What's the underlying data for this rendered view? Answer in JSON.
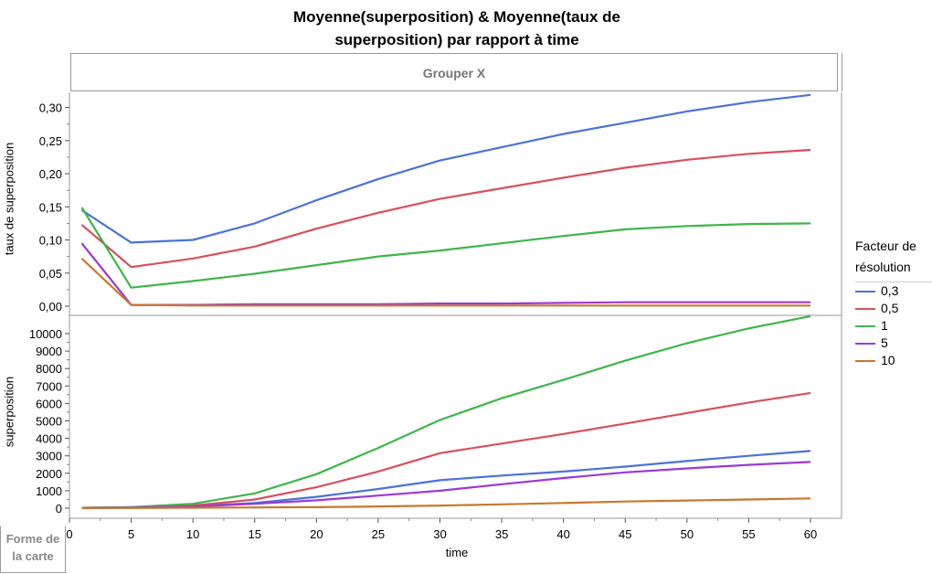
{
  "title": "Moyenne(superposition) & Moyenne(taux de superposition) par rapport à time",
  "title_lines": [
    "Moyenne(superposition) & Moyenne(taux de",
    "superposition) par rapport à time"
  ],
  "group_x_label": "Grouper X",
  "map_shape_label": [
    "Forme de",
    "la carte"
  ],
  "legend": {
    "title_lines": [
      "Facteur de",
      "résolution"
    ]
  },
  "chart_data": [
    {
      "type": "line",
      "ylabel": "taux de superposition",
      "xlabel": "time",
      "x": [
        1,
        5,
        10,
        15,
        20,
        25,
        30,
        35,
        40,
        45,
        50,
        55,
        60
      ],
      "xlim": [
        0,
        60
      ],
      "xticks": [
        0,
        5,
        10,
        15,
        20,
        25,
        30,
        35,
        40,
        45,
        50,
        55,
        60
      ],
      "ylim": [
        0,
        0.32
      ],
      "yticks": [
        0,
        0.05,
        0.1,
        0.15,
        0.2,
        0.25,
        0.3
      ],
      "yticklabels": [
        "0,00",
        "0,05",
        "0,10",
        "0,15",
        "0,20",
        "0,25",
        "0,30"
      ],
      "grid": false,
      "legend_position": "right",
      "series": [
        {
          "name": "0,3",
          "color": "#4a72d8",
          "values": [
            0.145,
            0.096,
            0.1,
            0.125,
            0.16,
            0.192,
            0.22,
            0.24,
            0.26,
            0.277,
            0.294,
            0.308,
            0.319
          ]
        },
        {
          "name": "0,5",
          "color": "#d94f5c",
          "values": [
            0.123,
            0.059,
            0.072,
            0.09,
            0.117,
            0.141,
            0.162,
            0.178,
            0.194,
            0.209,
            0.221,
            0.23,
            0.236
          ]
        },
        {
          "name": "1",
          "color": "#3fb54a",
          "values": [
            0.149,
            0.028,
            0.038,
            0.049,
            0.062,
            0.075,
            0.084,
            0.095,
            0.106,
            0.116,
            0.121,
            0.124,
            0.125
          ]
        },
        {
          "name": "5",
          "color": "#9b38d8",
          "values": [
            0.095,
            0.002,
            0.002,
            0.003,
            0.003,
            0.003,
            0.004,
            0.004,
            0.005,
            0.006,
            0.006,
            0.006,
            0.006
          ]
        },
        {
          "name": "10",
          "color": "#c8782c",
          "values": [
            0.072,
            0.002,
            0.001,
            0.001,
            0.001,
            0.001,
            0.001,
            0.001,
            0.001,
            0.001,
            0.001,
            0.001,
            0.001
          ]
        }
      ]
    },
    {
      "type": "line",
      "ylabel": "superposition",
      "xlabel": "time",
      "x": [
        1,
        5,
        10,
        15,
        20,
        25,
        30,
        35,
        40,
        45,
        50,
        55,
        60
      ],
      "xlim": [
        0,
        60
      ],
      "xticks": [
        0,
        5,
        10,
        15,
        20,
        25,
        30,
        35,
        40,
        45,
        50,
        55,
        60
      ],
      "ylim": [
        0,
        10500
      ],
      "yticks": [
        0,
        1000,
        2000,
        3000,
        4000,
        5000,
        6000,
        7000,
        8000,
        9000,
        10000
      ],
      "yticklabels": [
        "0",
        "1000",
        "2000",
        "3000",
        "4000",
        "5000",
        "6000",
        "7000",
        "8000",
        "9000",
        "10000"
      ],
      "grid": false,
      "legend_position": "right",
      "series": [
        {
          "name": "0,3",
          "color": "#4a72d8",
          "values": [
            20,
            50,
            120,
            300,
            650,
            1100,
            1600,
            1870,
            2100,
            2380,
            2700,
            3000,
            3280
          ]
        },
        {
          "name": "0,5",
          "color": "#d94f5c",
          "values": [
            20,
            50,
            150,
            500,
            1200,
            2100,
            3150,
            3700,
            4250,
            4850,
            5450,
            6050,
            6600
          ]
        },
        {
          "name": "1",
          "color": "#3fb54a",
          "values": [
            20,
            60,
            250,
            850,
            1950,
            3450,
            5050,
            6300,
            7350,
            8450,
            9450,
            10300,
            11000
          ]
        },
        {
          "name": "5",
          "color": "#9b38d8",
          "values": [
            10,
            30,
            100,
            250,
            450,
            720,
            1000,
            1370,
            1730,
            2050,
            2280,
            2480,
            2650
          ]
        },
        {
          "name": "10",
          "color": "#c8782c",
          "values": [
            5,
            10,
            25,
            40,
            60,
            100,
            150,
            220,
            300,
            380,
            440,
            500,
            560
          ]
        }
      ]
    }
  ]
}
